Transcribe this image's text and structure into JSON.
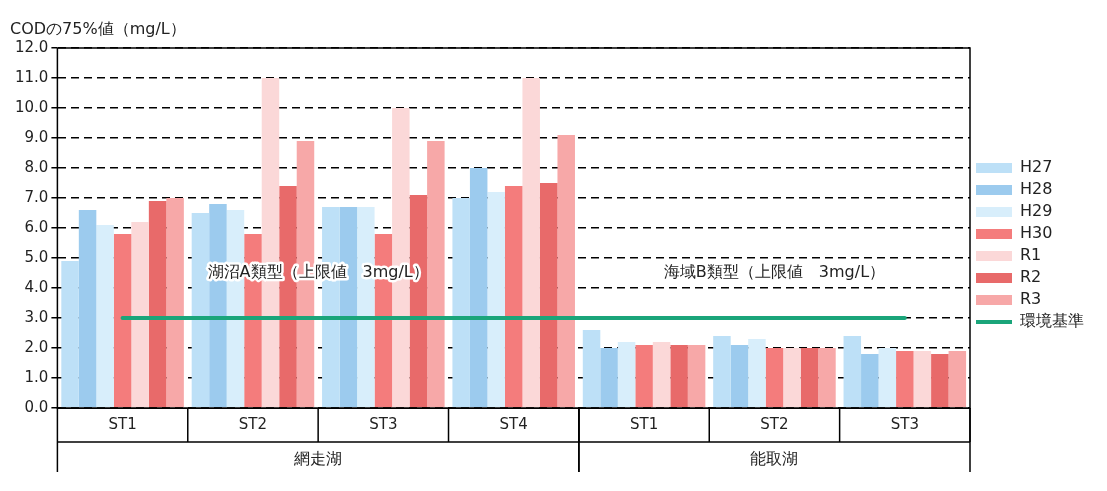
{
  "chart_data": {
    "type": "bar",
    "ylabel": "CODの75%値（mg/L）",
    "categories": [
      "ST1",
      "ST2",
      "ST3",
      "ST4",
      "ST1",
      "ST2",
      "ST3"
    ],
    "series": [
      {
        "name": "H27",
        "color": "#bde0f7",
        "values": [
          4.9,
          6.5,
          6.7,
          7.0,
          2.6,
          2.4,
          2.4
        ]
      },
      {
        "name": "H28",
        "color": "#9ccbee",
        "values": [
          6.6,
          6.8,
          6.7,
          8.0,
          2.0,
          2.1,
          1.8
        ]
      },
      {
        "name": "H29",
        "color": "#d8eefb",
        "values": [
          6.1,
          6.6,
          6.7,
          7.2,
          2.2,
          2.3,
          2.0
        ]
      },
      {
        "name": "H30",
        "color": "#f47c7c",
        "values": [
          5.8,
          5.8,
          5.8,
          7.4,
          2.1,
          2.0,
          1.9
        ]
      },
      {
        "name": "R1",
        "color": "#fbd8d8",
        "values": [
          6.2,
          11.0,
          10.0,
          11.0,
          2.2,
          2.0,
          1.9
        ]
      },
      {
        "name": "R2",
        "color": "#e86a6a",
        "values": [
          6.9,
          7.4,
          7.1,
          7.5,
          2.1,
          2.0,
          1.8
        ]
      },
      {
        "name": "R3",
        "color": "#f7a8a8",
        "values": [
          7.0,
          8.9,
          8.9,
          9.1,
          2.1,
          2.0,
          1.9
        ]
      },
      {
        "name": "環境基準",
        "type": "line",
        "color": "#1aa57a",
        "values": [
          3,
          3,
          3,
          3,
          3,
          3,
          3
        ]
      }
    ],
    "ylim": [
      0,
      12
    ],
    "yticks": [
      {
        "value": 0,
        "label": "0.0"
      },
      {
        "value": 1,
        "label": "1.0"
      },
      {
        "value": 2,
        "label": "2.0"
      },
      {
        "value": 3,
        "label": "3.0"
      },
      {
        "value": 4,
        "label": "4.0"
      },
      {
        "value": 5,
        "label": "5.0"
      },
      {
        "value": 6,
        "label": "6.0"
      },
      {
        "value": 7,
        "label": "7.0"
      },
      {
        "value": 8,
        "label": "8.0"
      },
      {
        "value": 9,
        "label": "9.0"
      },
      {
        "value": 10,
        "label": "10.0"
      },
      {
        "value": 11,
        "label": "11.0"
      },
      {
        "value": 12,
        "label": "12.0"
      }
    ],
    "grid": "y",
    "legend": "right",
    "annotations": [
      "湖沼A類型（上限値　3mg/L）",
      "海域B類型（上限値　3mg/L）",
      "網走湖",
      "能取湖"
    ]
  }
}
